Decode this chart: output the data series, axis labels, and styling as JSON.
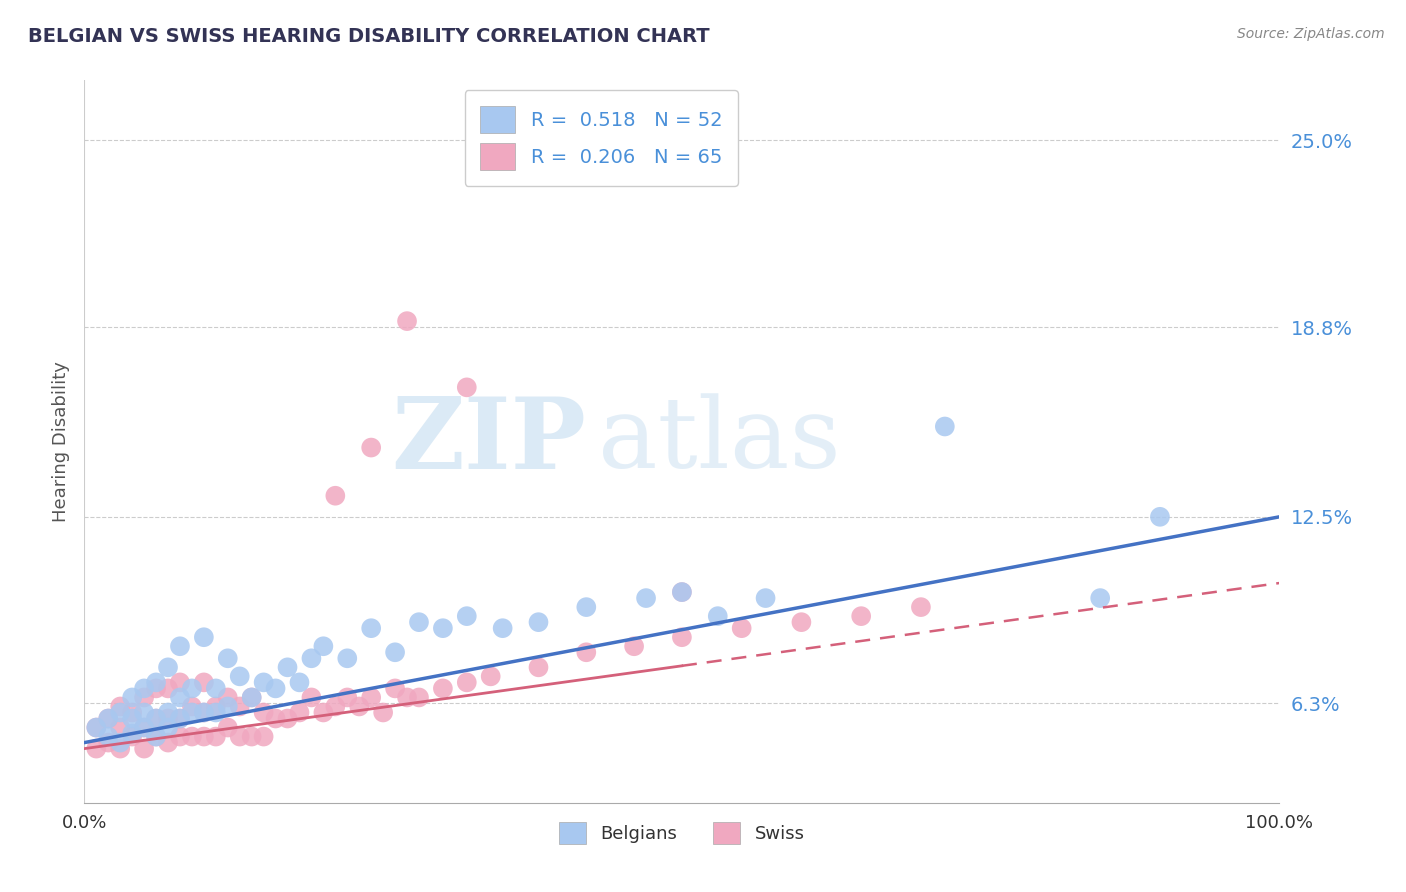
{
  "title": "BELGIAN VS SWISS HEARING DISABILITY CORRELATION CHART",
  "source": "Source: ZipAtlas.com",
  "ylabel": "Hearing Disability",
  "yticks": [
    0.063,
    0.125,
    0.188,
    0.25
  ],
  "ytick_labels": [
    "6.3%",
    "12.5%",
    "18.8%",
    "25.0%"
  ],
  "xlim": [
    0.0,
    1.0
  ],
  "ylim": [
    0.03,
    0.27
  ],
  "belgian_R": 0.518,
  "belgian_N": 52,
  "swiss_R": 0.206,
  "swiss_N": 65,
  "belgian_color": "#a8c8f0",
  "swiss_color": "#f0a8c0",
  "belgian_line_color": "#4472c4",
  "swiss_line_color": "#d4607a",
  "legend_belgian": "Belgians",
  "legend_swiss": "Swiss",
  "watermark_zip": "ZIP",
  "watermark_atlas": "atlas",
  "background_color": "#ffffff",
  "belgian_scatter_x": [
    0.01,
    0.02,
    0.02,
    0.03,
    0.03,
    0.04,
    0.04,
    0.04,
    0.05,
    0.05,
    0.05,
    0.06,
    0.06,
    0.06,
    0.07,
    0.07,
    0.07,
    0.08,
    0.08,
    0.08,
    0.09,
    0.09,
    0.1,
    0.1,
    0.11,
    0.11,
    0.12,
    0.12,
    0.13,
    0.14,
    0.15,
    0.16,
    0.17,
    0.18,
    0.19,
    0.2,
    0.22,
    0.24,
    0.26,
    0.28,
    0.3,
    0.32,
    0.35,
    0.38,
    0.42,
    0.47,
    0.5,
    0.53,
    0.57,
    0.72,
    0.85,
    0.9
  ],
  "belgian_scatter_y": [
    0.055,
    0.052,
    0.058,
    0.05,
    0.06,
    0.053,
    0.058,
    0.065,
    0.055,
    0.06,
    0.068,
    0.052,
    0.058,
    0.07,
    0.055,
    0.06,
    0.075,
    0.058,
    0.065,
    0.082,
    0.06,
    0.068,
    0.06,
    0.085,
    0.06,
    0.068,
    0.062,
    0.078,
    0.072,
    0.065,
    0.07,
    0.068,
    0.075,
    0.07,
    0.078,
    0.082,
    0.078,
    0.088,
    0.08,
    0.09,
    0.088,
    0.092,
    0.088,
    0.09,
    0.095,
    0.098,
    0.1,
    0.092,
    0.098,
    0.155,
    0.098,
    0.125
  ],
  "swiss_scatter_x": [
    0.01,
    0.01,
    0.02,
    0.02,
    0.03,
    0.03,
    0.03,
    0.04,
    0.04,
    0.05,
    0.05,
    0.05,
    0.06,
    0.06,
    0.06,
    0.07,
    0.07,
    0.07,
    0.08,
    0.08,
    0.08,
    0.09,
    0.09,
    0.1,
    0.1,
    0.1,
    0.11,
    0.11,
    0.12,
    0.12,
    0.13,
    0.13,
    0.14,
    0.14,
    0.15,
    0.15,
    0.16,
    0.17,
    0.18,
    0.19,
    0.2,
    0.21,
    0.22,
    0.23,
    0.24,
    0.25,
    0.26,
    0.27,
    0.28,
    0.3,
    0.32,
    0.34,
    0.38,
    0.42,
    0.46,
    0.5,
    0.55,
    0.6,
    0.65,
    0.7,
    0.21,
    0.24,
    0.27,
    0.32,
    0.5
  ],
  "swiss_scatter_y": [
    0.048,
    0.055,
    0.05,
    0.058,
    0.048,
    0.055,
    0.062,
    0.052,
    0.06,
    0.048,
    0.055,
    0.065,
    0.052,
    0.058,
    0.068,
    0.05,
    0.058,
    0.068,
    0.052,
    0.058,
    0.07,
    0.052,
    0.062,
    0.052,
    0.06,
    0.07,
    0.052,
    0.062,
    0.055,
    0.065,
    0.052,
    0.062,
    0.052,
    0.065,
    0.052,
    0.06,
    0.058,
    0.058,
    0.06,
    0.065,
    0.06,
    0.062,
    0.065,
    0.062,
    0.065,
    0.06,
    0.068,
    0.065,
    0.065,
    0.068,
    0.07,
    0.072,
    0.075,
    0.08,
    0.082,
    0.085,
    0.088,
    0.09,
    0.092,
    0.095,
    0.132,
    0.148,
    0.19,
    0.168,
    0.1
  ]
}
